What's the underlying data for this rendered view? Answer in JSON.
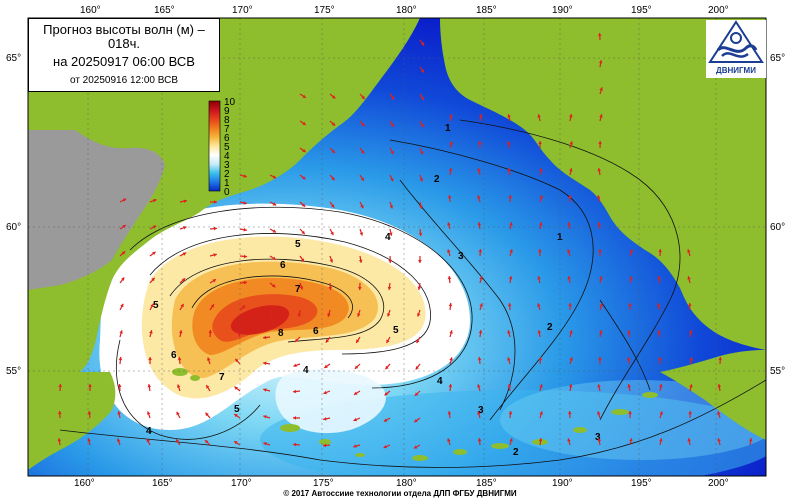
{
  "title": {
    "line1": "Прогноз высоты волн (м) – 018ч.",
    "line2": "на 20250917 06:00 ВСВ",
    "line3": "от 20250916 12:00 ВСВ"
  },
  "logo": {
    "text": "ДВНИГМИ"
  },
  "footer": {
    "text": "© 2017 Автоссиие технологии отдела ДЛП ФГБУ ДВНИГМИ"
  },
  "axes": {
    "lon_labels": [
      "160°",
      "165°",
      "170°",
      "175°",
      "180°",
      "185°",
      "190°",
      "195°",
      "200°"
    ],
    "lat_labels": [
      "65°",
      "60°",
      "55°"
    ]
  },
  "colorbar": {
    "labels": [
      "10",
      "9",
      "8",
      "7",
      "6",
      "5",
      "4",
      "3",
      "2",
      "1",
      "0"
    ],
    "colors": [
      "#8b0000",
      "#c8141e",
      "#e8401c",
      "#f07a1e",
      "#f5b43c",
      "#fde79a",
      "#ffffff",
      "#c8ecfa",
      "#3cc0ec",
      "#1e78e6",
      "#0a28c8"
    ]
  },
  "contour_labels": [
    "1",
    "2",
    "3",
    "2",
    "1",
    "5",
    "4",
    "6",
    "7",
    "8",
    "6",
    "5",
    "5",
    "6",
    "7",
    "5",
    "4",
    "4",
    "4",
    "3",
    "3",
    "2"
  ],
  "colors": {
    "land": "#8ebe2e",
    "gray_land": "#9a9a9a",
    "deep_blue": "#0a18c8",
    "arrow": "#e02020"
  }
}
